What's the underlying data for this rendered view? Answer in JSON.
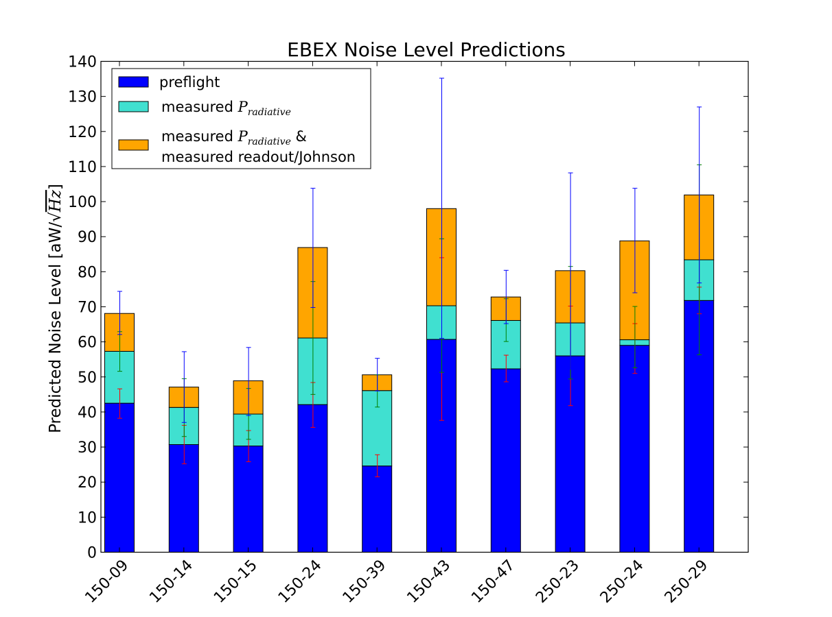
{
  "chart_data": {
    "type": "bar",
    "stacked": true,
    "title": "EBEX Noise Level Predictions",
    "ylabel_prefix": "Predicted Noise Level [aW/",
    "ylabel_sqrt": "Hz",
    "ylabel_suffix": "]",
    "ylim": [
      0,
      140
    ],
    "yticks": [
      0,
      10,
      20,
      30,
      40,
      50,
      60,
      70,
      80,
      90,
      100,
      110,
      120,
      130,
      140
    ],
    "grid": false,
    "legend_position": "top-left",
    "categories": [
      "150-09",
      "150-14",
      "150-15",
      "150-24",
      "150-39",
      "150-43",
      "150-47",
      "250-23",
      "250-24",
      "250-29"
    ],
    "series": [
      {
        "name": "preflight",
        "color": "#0000ff",
        "errorbar_color": "#ff0000",
        "totals": [
          42.5,
          30.7,
          30.3,
          42.1,
          24.6,
          60.7,
          52.3,
          56.0,
          59.0,
          71.8
        ],
        "err_low": [
          38.2,
          25.2,
          25.8,
          35.6,
          21.5,
          37.6,
          48.6,
          41.8,
          51.0,
          68.0
        ],
        "err_high": [
          46.6,
          36.2,
          34.7,
          48.4,
          27.8,
          84.0,
          56.2,
          70.2,
          65.2,
          75.6
        ]
      },
      {
        "name": "measured P_radiative",
        "label_text": "measured ",
        "label_symbol": "P",
        "label_subscript": "radiative",
        "color": "#40e0d0",
        "errorbar_color": "#008000",
        "totals": [
          57.3,
          41.3,
          39.4,
          61.1,
          46.1,
          70.3,
          66.1,
          65.4,
          60.6,
          83.4
        ],
        "err_low": [
          51.6,
          33.0,
          32.2,
          45.0,
          41.4,
          51.3,
          60.1,
          49.4,
          52.6,
          56.3
        ],
        "err_high": [
          62.9,
          49.5,
          46.7,
          77.2,
          50.6,
          89.4,
          72.3,
          81.5,
          70.1,
          110.5
        ]
      },
      {
        "name": "measured P_radiative & measured readout/Johnson",
        "label_text": "measured ",
        "label_symbol": "P",
        "label_subscript": "radiative",
        "label_suffix": " &",
        "label_line2": "measured readout/Johnson",
        "color": "#ffa500",
        "errorbar_color": "#0000ff",
        "totals": [
          68.1,
          47.1,
          48.9,
          86.9,
          50.6,
          98.0,
          72.8,
          80.3,
          88.8,
          101.9
        ],
        "err_low": [
          62.1,
          37.0,
          39.0,
          69.8,
          46.0,
          61.0,
          65.2,
          52.2,
          74.0,
          76.8
        ],
        "err_high": [
          74.4,
          57.2,
          58.4,
          103.8,
          55.3,
          135.2,
          80.4,
          108.2,
          103.8,
          127.0
        ]
      }
    ]
  }
}
